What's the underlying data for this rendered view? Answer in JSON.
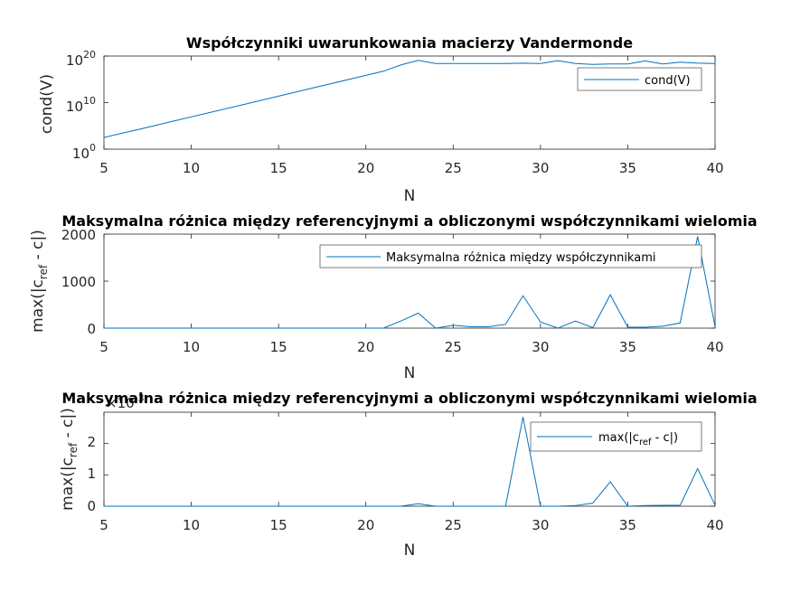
{
  "colors": {
    "series": "#0072bd",
    "axes": "#262626",
    "background": "#ffffff"
  },
  "chart_data": [
    {
      "type": "line",
      "title": "Współczynniki uwarunkowania macierzy Vandermonde",
      "xlabel": "N",
      "ylabel": "cond(V)",
      "yscale": "log",
      "xlim": [
        5,
        40
      ],
      "ylim": [
        1,
        1e+20
      ],
      "xticks": [
        5,
        10,
        15,
        20,
        25,
        30,
        35,
        40
      ],
      "yticks": [
        {
          "base": "10",
          "exp": "0"
        },
        {
          "base": "10",
          "exp": "10"
        },
        {
          "base": "10",
          "exp": "20"
        }
      ],
      "legend": {
        "entries": [
          "cond(V)"
        ],
        "location": "top-right"
      },
      "series": [
        {
          "name": "cond(V)",
          "x": [
            5,
            6,
            7,
            8,
            9,
            10,
            11,
            12,
            13,
            14,
            15,
            16,
            17,
            18,
            19,
            20,
            21,
            22,
            23,
            24,
            25,
            26,
            27,
            28,
            29,
            30,
            31,
            32,
            33,
            34,
            35,
            36,
            37,
            38,
            39,
            40
          ],
          "values": [
            320,
            2500,
            18000.0,
            140000.0,
            1100000.0,
            8500000.0,
            65000000.0,
            500000000.0,
            3900000000.0,
            30000000000.0,
            240000000000.0,
            1900000000000.0,
            15000000000000.0,
            115000000000000.0,
            900000000000000.0,
            7000000000000000.0,
            5.5e+16,
            1.2e+18,
            1.2e+19,
            2.5e+18,
            2.5e+18,
            2.5e+18,
            2.5e+18,
            2.5e+18,
            3e+18,
            2.5e+18,
            1e+19,
            2.5e+18,
            1.6e+18,
            2e+18,
            2e+18,
            9e+18,
            2e+18,
            5e+18,
            3e+18,
            2.5e+18
          ]
        }
      ]
    },
    {
      "type": "line",
      "title": "Maksymalna różnica między referencyjnymi a obliczonymi współczynnikami wielomia",
      "xlabel": "N",
      "ylabel": {
        "main": "max(|c",
        "sub": "ref",
        "tail": " - c|)"
      },
      "xlim": [
        5,
        40
      ],
      "ylim": [
        0,
        2000
      ],
      "xticks": [
        5,
        10,
        15,
        20,
        25,
        30,
        35,
        40
      ],
      "yticks": [
        0,
        1000,
        2000
      ],
      "legend": {
        "entries": [
          "Maksymalna różnica między współczynnikami"
        ],
        "location": "top-right"
      },
      "series": [
        {
          "name": "Maksymalna różnica między współczynnikami",
          "x": [
            5,
            6,
            7,
            8,
            9,
            10,
            11,
            12,
            13,
            14,
            15,
            16,
            17,
            18,
            19,
            20,
            21,
            22,
            23,
            24,
            25,
            26,
            27,
            28,
            29,
            30,
            31,
            32,
            33,
            34,
            35,
            36,
            37,
            38,
            39,
            40
          ],
          "values": [
            0,
            0,
            0,
            0,
            0,
            0,
            0,
            0,
            0,
            0,
            0,
            0,
            0,
            0,
            0,
            0,
            0,
            150,
            320,
            0,
            60,
            30,
            30,
            80,
            690,
            130,
            0,
            150,
            10,
            710,
            20,
            20,
            40,
            110,
            1950,
            30
          ]
        }
      ]
    },
    {
      "type": "line",
      "title": "Maksymalna różnica między referencyjnymi a obliczonymi współczynnikami wielomia",
      "xlabel": "N",
      "ylabel": {
        "main": "max(|c",
        "sub": "ref",
        "tail": " - c|)"
      },
      "xlim": [
        5,
        40
      ],
      "ylim": [
        0,
        3
      ],
      "scale_label": {
        "base": "×10",
        "exp": "-3"
      },
      "xticks": [
        5,
        10,
        15,
        20,
        25,
        30,
        35,
        40
      ],
      "yticks": [
        0,
        1,
        2
      ],
      "legend": {
        "entries": [
          {
            "main": "max(|c",
            "sub": "ref",
            "tail": " - c|)"
          }
        ],
        "location": "top-right"
      },
      "series": [
        {
          "name": "max(|c_ref - c|)",
          "x": [
            5,
            6,
            7,
            8,
            9,
            10,
            11,
            12,
            13,
            14,
            15,
            16,
            17,
            18,
            19,
            20,
            21,
            22,
            23,
            24,
            25,
            26,
            27,
            28,
            29,
            30,
            31,
            32,
            33,
            34,
            35,
            36,
            37,
            38,
            39,
            40
          ],
          "values": [
            0,
            0,
            0,
            0,
            0,
            0,
            0,
            0,
            0,
            0,
            0,
            0,
            0,
            0,
            0,
            0,
            0,
            0,
            0.08,
            0,
            0,
            0,
            0,
            0,
            2.85,
            0,
            0,
            0.02,
            0.1,
            0.78,
            0,
            0.02,
            0.03,
            0.03,
            1.2,
            0.03
          ]
        }
      ]
    }
  ]
}
